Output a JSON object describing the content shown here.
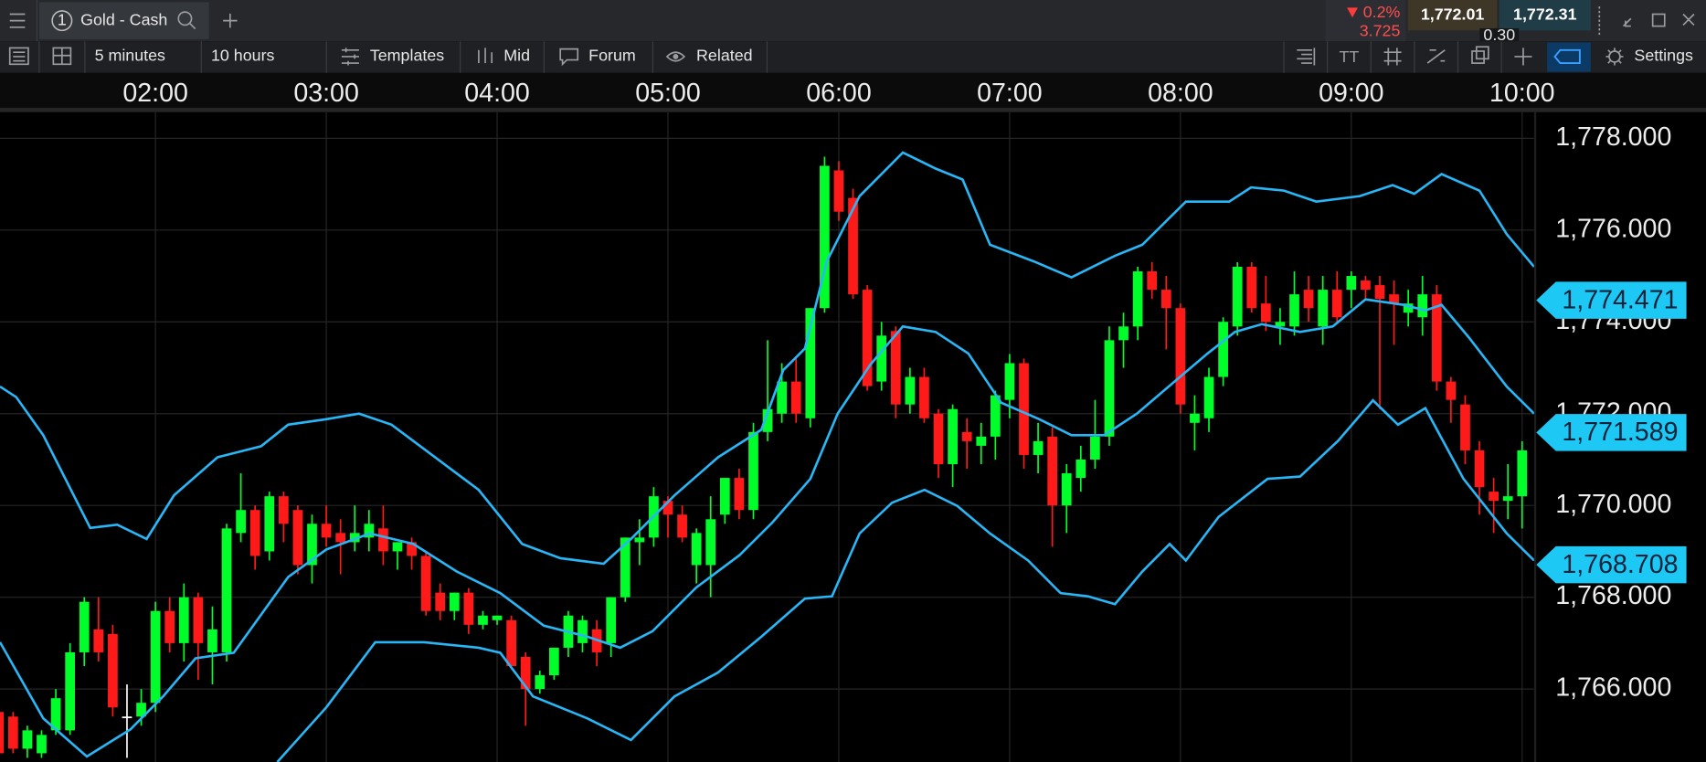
{
  "toolbar": {
    "tab_number": "1",
    "tab_title": "Gold - Cash",
    "change_percent": "0.2%",
    "change_points": "3.725",
    "sell": "1,772.01",
    "buy": "1,772.31",
    "spread": "0.30",
    "interval": "5 minutes",
    "range": "10 hours",
    "buttons": [
      "Templates",
      "Mid",
      "Forum",
      "Related"
    ],
    "settings": "Settings"
  },
  "chart_data": {
    "type": "candlestick",
    "xlim": [
      65.4,
      604.2
    ],
    "xticks": [
      {
        "value": 120,
        "label": "02:00"
      },
      {
        "value": 180,
        "label": "03:00"
      },
      {
        "value": 240,
        "label": "04:00"
      },
      {
        "value": 300,
        "label": "05:00"
      },
      {
        "value": 360,
        "label": "06:00"
      },
      {
        "value": 420,
        "label": "07:00"
      },
      {
        "value": 480,
        "label": "08:00"
      },
      {
        "value": 540,
        "label": "09:00"
      },
      {
        "value": 600,
        "label": "10:00"
      }
    ],
    "ylim": [
      1764.41,
      1778.57
    ],
    "yticks": [
      {
        "value": 1766,
        "label": "1,766.000"
      },
      {
        "value": 1768,
        "label": "1,768.000"
      },
      {
        "value": 1770,
        "label": "1,770.000"
      },
      {
        "value": 1772,
        "label": "1,772.000"
      },
      {
        "value": 1774,
        "label": "1,774.000"
      },
      {
        "value": 1776,
        "label": "1,776.000"
      },
      {
        "value": 1778,
        "label": "1,778.000"
      }
    ],
    "grid": true,
    "up_color": "#00ff2a",
    "down_color": "#ff1a1a",
    "flat_color": "#ffffff",
    "x": [
      65,
      70,
      75,
      80,
      85,
      90,
      95,
      100,
      105,
      110,
      115,
      120,
      125,
      130,
      135,
      140,
      145,
      150,
      155,
      160,
      165,
      170,
      175,
      180,
      185,
      190,
      195,
      200,
      205,
      210,
      215,
      220,
      225,
      230,
      235,
      240,
      245,
      250,
      255,
      260,
      265,
      270,
      275,
      280,
      285,
      290,
      295,
      300,
      305,
      310,
      315,
      320,
      325,
      330,
      335,
      340,
      345,
      350,
      355,
      360,
      365,
      370,
      375,
      380,
      385,
      390,
      395,
      400,
      405,
      410,
      415,
      420,
      425,
      430,
      435,
      440,
      445,
      450,
      455,
      460,
      465,
      470,
      475,
      480,
      485,
      490,
      495,
      500,
      505,
      510,
      515,
      520,
      525,
      530,
      535,
      540,
      545,
      550,
      555,
      560,
      565,
      570,
      575,
      580,
      585,
      590,
      595,
      600
    ],
    "open": [
      1765.5,
      1765.4,
      1764.7,
      1764.6,
      1765.1,
      1765.1,
      1766.8,
      1767.3,
      1767.2,
      1765.4,
      1765.4,
      1765.7,
      1767.7,
      1767.0,
      1768.0,
      1766.8,
      1766.8,
      1769.4,
      1769.9,
      1769.0,
      1770.2,
      1769.9,
      1768.7,
      1769.6,
      1769.4,
      1769.2,
      1769.3,
      1769.5,
      1769.0,
      1769.2,
      1768.9,
      1768.1,
      1767.7,
      1768.1,
      1767.4,
      1767.5,
      1767.5,
      1766.7,
      1766.0,
      1766.3,
      1766.9,
      1767.0,
      1767.3,
      1767.0,
      1768.0,
      1769.2,
      1769.3,
      1770.1,
      1769.8,
      1768.7,
      1768.7,
      1769.8,
      1770.6,
      1769.9,
      1771.6,
      1772.0,
      1772.7,
      1771.9,
      1774.3,
      1777.3,
      1776.7,
      1774.7,
      1772.7,
      1773.8,
      1772.2,
      1772.8,
      1772.0,
      1770.9,
      1771.6,
      1771.3,
      1771.5,
      1772.3,
      1773.1,
      1771.1,
      1771.5,
      1770.0,
      1770.6,
      1771.0,
      1771.5,
      1773.6,
      1773.9,
      1775.1,
      1774.7,
      1774.3,
      1771.8,
      1771.9,
      1772.8,
      1773.9,
      1775.2,
      1774.4,
      1773.9,
      1773.9,
      1774.7,
      1773.9,
      1774.7,
      1774.7,
      1774.9,
      1774.8,
      1774.6,
      1774.2,
      1774.1,
      1774.6,
      1772.7,
      1772.2,
      1771.2,
      1770.3,
      1770.1,
      1770.2
    ],
    "high": [
      1765.7,
      1765.5,
      1765.2,
      1765.1,
      1766.0,
      1767.0,
      1768.0,
      1768.0,
      1767.4,
      1766.1,
      1766.0,
      1767.9,
      1768.0,
      1768.3,
      1768.1,
      1767.8,
      1769.6,
      1770.7,
      1770.0,
      1770.3,
      1770.3,
      1770.0,
      1769.8,
      1770.0,
      1769.7,
      1770.0,
      1769.9,
      1770.0,
      1769.2,
      1769.3,
      1769.0,
      1768.3,
      1768.1,
      1768.2,
      1767.7,
      1767.6,
      1767.6,
      1766.8,
      1766.4,
      1766.9,
      1767.7,
      1767.6,
      1767.5,
      1768.0,
      1769.3,
      1769.7,
      1770.4,
      1770.2,
      1770.0,
      1769.5,
      1770.2,
      1770.6,
      1770.8,
      1771.8,
      1773.6,
      1773.1,
      1773.2,
      1774.3,
      1777.6,
      1777.5,
      1776.9,
      1774.8,
      1774.0,
      1773.9,
      1773.0,
      1773.0,
      1772.1,
      1772.2,
      1771.9,
      1771.8,
      1772.5,
      1773.3,
      1773.2,
      1771.8,
      1771.7,
      1770.9,
      1771.3,
      1772.3,
      1773.9,
      1774.2,
      1775.2,
      1775.3,
      1775.0,
      1774.4,
      1772.4,
      1773.0,
      1774.1,
      1775.3,
      1775.3,
      1775.0,
      1774.3,
      1775.1,
      1775.0,
      1775.0,
      1775.1,
      1775.1,
      1775.0,
      1775.0,
      1774.9,
      1774.7,
      1775.0,
      1774.8,
      1772.8,
      1772.4,
      1771.4,
      1770.6,
      1770.9,
      1771.4
    ],
    "low": [
      1764.5,
      1764.6,
      1764.5,
      1764.5,
      1765.0,
      1765.0,
      1766.5,
      1766.6,
      1765.4,
      1764.5,
      1765.2,
      1765.5,
      1766.8,
      1766.6,
      1766.2,
      1766.1,
      1766.6,
      1769.2,
      1768.6,
      1768.8,
      1769.2,
      1768.5,
      1768.3,
      1769.1,
      1768.5,
      1769.0,
      1769.0,
      1768.7,
      1768.6,
      1768.6,
      1767.6,
      1767.5,
      1767.5,
      1767.2,
      1767.3,
      1767.4,
      1766.5,
      1765.2,
      1765.9,
      1766.2,
      1766.7,
      1766.8,
      1766.5,
      1766.7,
      1767.9,
      1768.7,
      1769.1,
      1769.3,
      1769.2,
      1768.3,
      1768.0,
      1769.6,
      1769.7,
      1769.7,
      1771.4,
      1771.8,
      1771.8,
      1771.7,
      1774.2,
      1776.2,
      1774.5,
      1772.5,
      1772.5,
      1771.9,
      1772.0,
      1771.8,
      1770.6,
      1770.4,
      1770.8,
      1770.9,
      1771.0,
      1771.9,
      1770.8,
      1770.7,
      1769.1,
      1769.4,
      1770.3,
      1770.8,
      1771.3,
      1773.0,
      1773.6,
      1774.5,
      1773.4,
      1772.0,
      1771.2,
      1771.6,
      1772.6,
      1773.7,
      1774.2,
      1773.8,
      1773.5,
      1773.7,
      1774.0,
      1773.5,
      1774.0,
      1774.3,
      1774.5,
      1772.1,
      1773.5,
      1773.9,
      1773.7,
      1772.5,
      1771.8,
      1770.9,
      1769.8,
      1769.4,
      1769.7,
      1769.5
    ],
    "close": [
      1764.6,
      1764.7,
      1765.1,
      1765.0,
      1765.8,
      1766.8,
      1767.9,
      1766.8,
      1765.6,
      1765.4,
      1765.7,
      1767.7,
      1767.0,
      1768.0,
      1767.0,
      1767.3,
      1769.5,
      1769.9,
      1768.9,
      1770.2,
      1769.6,
      1768.7,
      1769.6,
      1769.3,
      1769.2,
      1769.4,
      1769.6,
      1769.0,
      1769.2,
      1768.9,
      1767.7,
      1767.7,
      1768.1,
      1767.4,
      1767.6,
      1767.6,
      1766.5,
      1766.0,
      1766.3,
      1766.9,
      1767.6,
      1767.5,
      1766.8,
      1768.0,
      1769.3,
      1769.3,
      1770.2,
      1769.8,
      1769.3,
      1769.4,
      1769.7,
      1770.6,
      1769.9,
      1771.6,
      1772.1,
      1772.7,
      1772.0,
      1774.3,
      1777.4,
      1776.4,
      1774.6,
      1772.6,
      1773.7,
      1772.2,
      1772.8,
      1771.9,
      1770.9,
      1772.1,
      1771.4,
      1771.5,
      1772.4,
      1773.1,
      1771.1,
      1771.4,
      1770.0,
      1770.7,
      1771.0,
      1771.5,
      1773.6,
      1773.9,
      1775.1,
      1774.7,
      1774.3,
      1772.2,
      1772.0,
      1772.8,
      1774.0,
      1775.2,
      1774.3,
      1774.0,
      1774.0,
      1774.6,
      1774.3,
      1774.7,
      1774.1,
      1775.0,
      1774.7,
      1774.5,
      1774.4,
      1774.4,
      1774.6,
      1772.7,
      1772.3,
      1771.2,
      1770.4,
      1770.1,
      1770.2,
      1771.2
    ],
    "series": [
      {
        "color": "#29b6f6",
        "x": [
          65.4,
          71.1,
          80.6,
          97.1,
          106.6,
          116.9,
          126.5,
          141.8,
          157.1,
          166.6,
          180.0,
          191.5,
          202.9,
          218.2,
          233.5,
          248.8,
          262.2,
          277.4,
          287.0,
          302.3,
          317.6,
          332.8,
          340.5,
          348.1,
          355.8,
          367.3,
          382.5,
          394.0,
          403.5,
          413.1,
          428.4,
          441.7,
          457.0,
          466.6,
          481.9,
          497.1,
          504.8,
          516.3,
          527.7,
          543.0,
          554.5,
          562.1,
          571.7,
          585.0,
          594.6,
          604.2
        ],
        "values": [
          1772.59,
          1772.36,
          1771.53,
          1769.51,
          1769.58,
          1769.27,
          1770.22,
          1771.05,
          1771.29,
          1771.76,
          1771.88,
          1772.0,
          1771.76,
          1771.05,
          1770.34,
          1769.16,
          1768.85,
          1768.73,
          1769.27,
          1770.22,
          1771.05,
          1771.65,
          1772.95,
          1773.42,
          1775.32,
          1776.74,
          1777.69,
          1777.34,
          1777.1,
          1775.68,
          1775.32,
          1774.97,
          1775.44,
          1775.68,
          1776.62,
          1776.62,
          1776.93,
          1776.86,
          1776.62,
          1776.74,
          1776.98,
          1776.79,
          1777.22,
          1776.86,
          1775.91,
          1775.2
        ]
      },
      {
        "color": "#29b6f6",
        "x": [
          65.4,
          80.6,
          95.9,
          111.2,
          122.7,
          134.1,
          147.5,
          166.6,
          180.0,
          195.3,
          210.6,
          225.8,
          241.1,
          256.4,
          271.7,
          283.2,
          294.6,
          309.9,
          325.2,
          336.7,
          350.0,
          359.6,
          371.1,
          382.5,
          394.0,
          405.5,
          417.0,
          430.4,
          441.7,
          453.2,
          464.7,
          478.1,
          489.5,
          499.1,
          508.6,
          522.0,
          533.5,
          545.0,
          558.4,
          566.0,
          571.7,
          581.3,
          594.6,
          604.2
        ],
        "values": [
          1767.02,
          1765.36,
          1764.53,
          1765.12,
          1765.84,
          1766.67,
          1766.79,
          1768.44,
          1769.04,
          1769.39,
          1769.16,
          1768.56,
          1768.09,
          1767.38,
          1767.14,
          1766.9,
          1767.26,
          1768.21,
          1768.92,
          1769.63,
          1770.58,
          1772.0,
          1773.07,
          1773.9,
          1773.78,
          1773.31,
          1772.24,
          1771.88,
          1771.53,
          1771.53,
          1772.0,
          1772.71,
          1773.31,
          1773.78,
          1773.95,
          1773.78,
          1773.9,
          1774.49,
          1774.37,
          1774.25,
          1774.37,
          1773.66,
          1772.59,
          1772.0
        ]
      },
      {
        "color": "#29b6f6",
        "x": [
          162.8,
          180.0,
          197.2,
          214.4,
          233.5,
          241.1,
          252.6,
          271.7,
          287.0,
          302.3,
          317.6,
          332.8,
          348.1,
          357.6,
          367.3,
          378.7,
          390.1,
          401.6,
          413.1,
          426.5,
          437.9,
          447.5,
          457.0,
          466.6,
          476.2,
          481.9,
          493.4,
          510.6,
          522.0,
          535.4,
          547.6,
          556.4,
          566.0,
          579.4,
          594.6,
          604.2
        ],
        "values": [
          1764.41,
          1765.6,
          1767.02,
          1767.02,
          1766.9,
          1766.79,
          1765.84,
          1765.36,
          1764.89,
          1765.84,
          1766.36,
          1767.14,
          1767.97,
          1768.02,
          1769.39,
          1770.06,
          1770.34,
          1769.99,
          1769.39,
          1768.8,
          1768.09,
          1768.02,
          1767.85,
          1768.56,
          1769.16,
          1768.8,
          1769.75,
          1770.58,
          1770.63,
          1771.41,
          1772.29,
          1771.76,
          1772.12,
          1770.58,
          1769.39,
          1768.8
        ]
      }
    ],
    "markers": [
      {
        "value": 1774.471,
        "label": "1,774.471"
      },
      {
        "value": 1771.589,
        "label": "1,771.589"
      },
      {
        "value": 1768.708,
        "label": "1,768.708"
      }
    ],
    "marker_color": "#1ec8f5"
  }
}
